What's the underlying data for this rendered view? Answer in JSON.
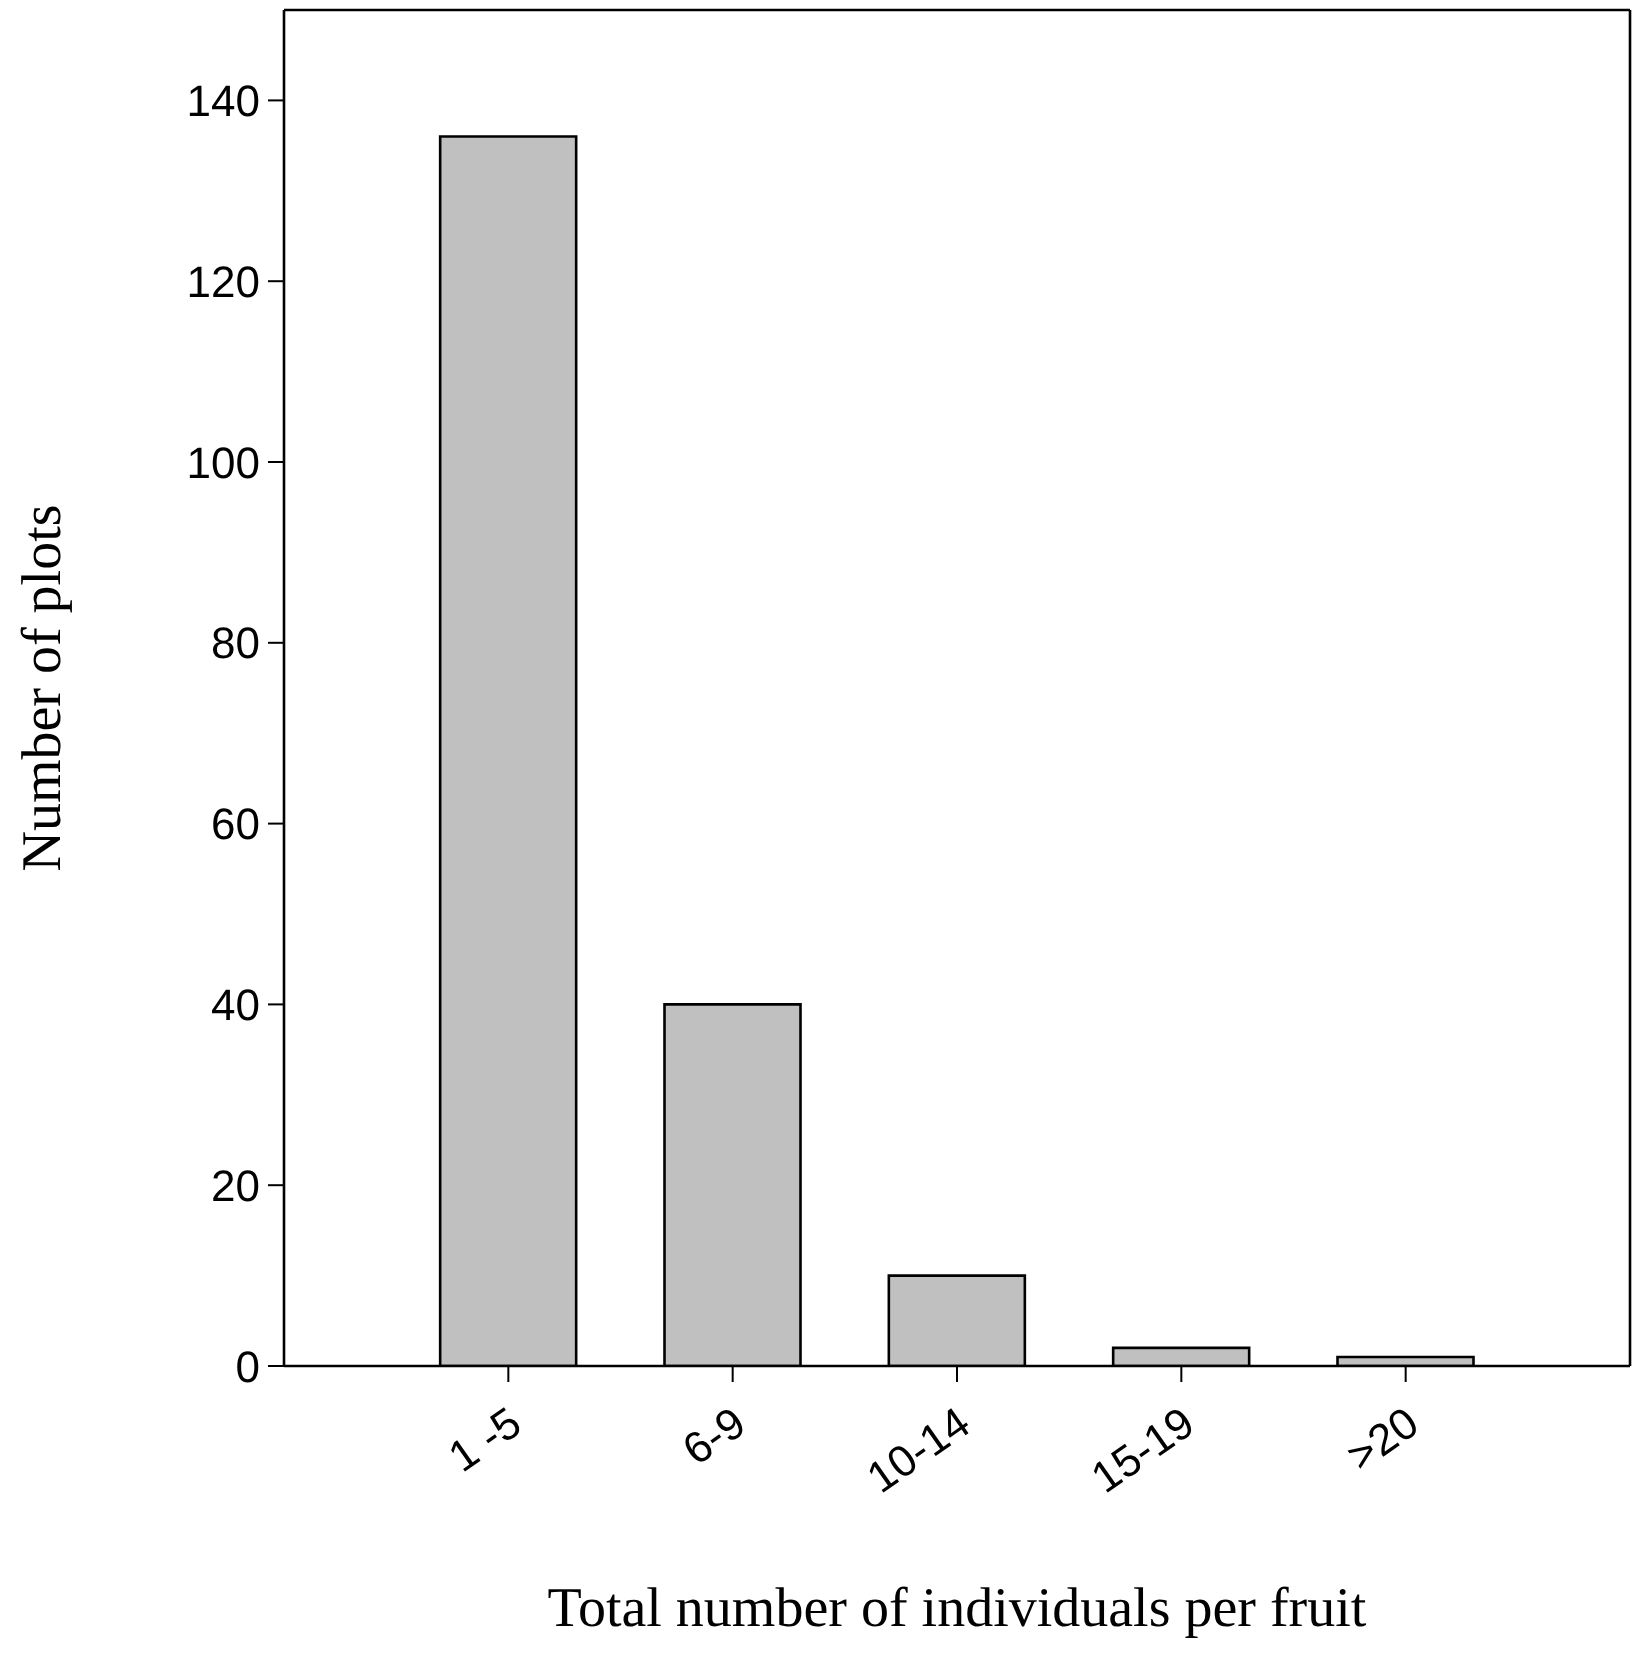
{
  "chart_data": {
    "type": "bar",
    "xlabel": "Total number of individuals per fruit",
    "ylabel": "Number of plots",
    "categories": [
      "1 -5",
      "6-9",
      "10-14",
      "15-19",
      ">20"
    ],
    "values": [
      136,
      40,
      10,
      2,
      1
    ],
    "color": "#c0c0c0",
    "ylim": [
      0,
      150
    ],
    "yticks": [
      0,
      20,
      40,
      60,
      80,
      100,
      120,
      140
    ]
  }
}
